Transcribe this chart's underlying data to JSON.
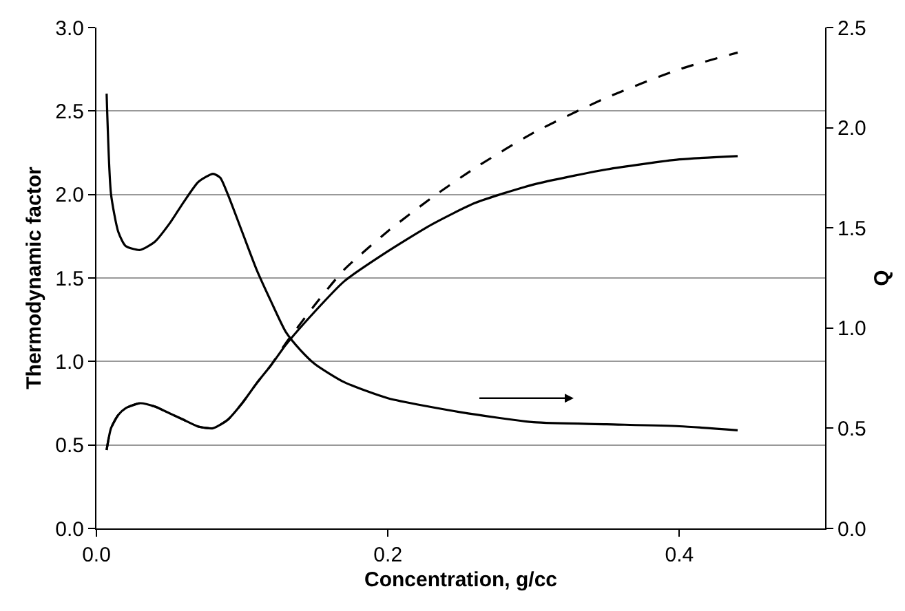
{
  "chart_data": {
    "type": "line",
    "xlabel": "Concentration, g/cc",
    "ylabel": "Thermodynamic factor",
    "y2label": "Q",
    "xlim": [
      0,
      0.5
    ],
    "xticks": [
      {
        "value": 0,
        "label": "0.0"
      },
      {
        "value": 0.2,
        "label": "0.2"
      },
      {
        "value": 0.4,
        "label": "0.4"
      }
    ],
    "ylim": [
      0,
      3
    ],
    "yticks": [
      {
        "value": 0,
        "label": "0.0"
      },
      {
        "value": 0.5,
        "label": "0.5"
      },
      {
        "value": 1,
        "label": "1.0"
      },
      {
        "value": 1.5,
        "label": "1.5"
      },
      {
        "value": 2,
        "label": "2.0"
      },
      {
        "value": 2.5,
        "label": "2.5"
      },
      {
        "value": 3,
        "label": "3.0"
      }
    ],
    "y2lim": [
      0,
      2.5
    ],
    "y2ticks": [
      {
        "value": 0,
        "label": "0.0"
      },
      {
        "value": 0.5,
        "label": "0.5"
      },
      {
        "value": 1,
        "label": "1.0"
      },
      {
        "value": 1.5,
        "label": "1.5"
      },
      {
        "value": 2,
        "label": "2.0"
      },
      {
        "value": 2.5,
        "label": "2.5"
      }
    ],
    "grid": "y",
    "marker": "none",
    "series": [
      {
        "color": "#000000",
        "axis": "y2",
        "line_style": "solid",
        "x": [
          0.007,
          0.01,
          0.015,
          0.02,
          0.03,
          0.04,
          0.05,
          0.06,
          0.07,
          0.08,
          0.085,
          0.09,
          0.1,
          0.11,
          0.12,
          0.13,
          0.14,
          0.15,
          0.17,
          0.2,
          0.25,
          0.3,
          0.35,
          0.4,
          0.44
        ],
        "values": [
          2.17,
          1.67,
          1.48,
          1.41,
          1.39,
          1.43,
          1.52,
          1.63,
          1.73,
          1.77,
          1.75,
          1.67,
          1.48,
          1.29,
          1.13,
          0.98,
          0.89,
          0.82,
          0.73,
          0.65,
          0.58,
          0.53,
          0.52,
          0.51,
          0.49
        ]
      },
      {
        "color": "#000000",
        "line_style": "solid",
        "x": [
          0.007,
          0.01,
          0.015,
          0.02,
          0.03,
          0.04,
          0.05,
          0.06,
          0.07,
          0.08,
          0.09,
          0.1,
          0.11,
          0.12,
          0.13,
          0.15,
          0.17,
          0.2,
          0.23,
          0.26,
          0.3,
          0.35,
          0.4,
          0.44
        ],
        "values": [
          0.47,
          0.6,
          0.68,
          0.72,
          0.75,
          0.73,
          0.69,
          0.65,
          0.61,
          0.6,
          0.65,
          0.75,
          0.87,
          0.98,
          1.1,
          1.3,
          1.48,
          1.66,
          1.82,
          1.95,
          2.06,
          2.15,
          2.21,
          2.23
        ]
      },
      {
        "color": "#000000",
        "line_style": "dashed",
        "x": [
          0.007,
          0.01,
          0.015,
          0.02,
          0.03,
          0.04,
          0.05,
          0.06,
          0.07,
          0.08,
          0.09,
          0.1,
          0.11,
          0.12,
          0.13,
          0.15,
          0.17,
          0.2,
          0.23,
          0.26,
          0.3,
          0.35,
          0.4,
          0.44
        ],
        "values": [
          0.47,
          0.6,
          0.68,
          0.72,
          0.75,
          0.73,
          0.69,
          0.65,
          0.61,
          0.6,
          0.65,
          0.75,
          0.87,
          0.98,
          1.11,
          1.34,
          1.55,
          1.78,
          1.98,
          2.16,
          2.37,
          2.58,
          2.75,
          2.85
        ]
      }
    ]
  }
}
